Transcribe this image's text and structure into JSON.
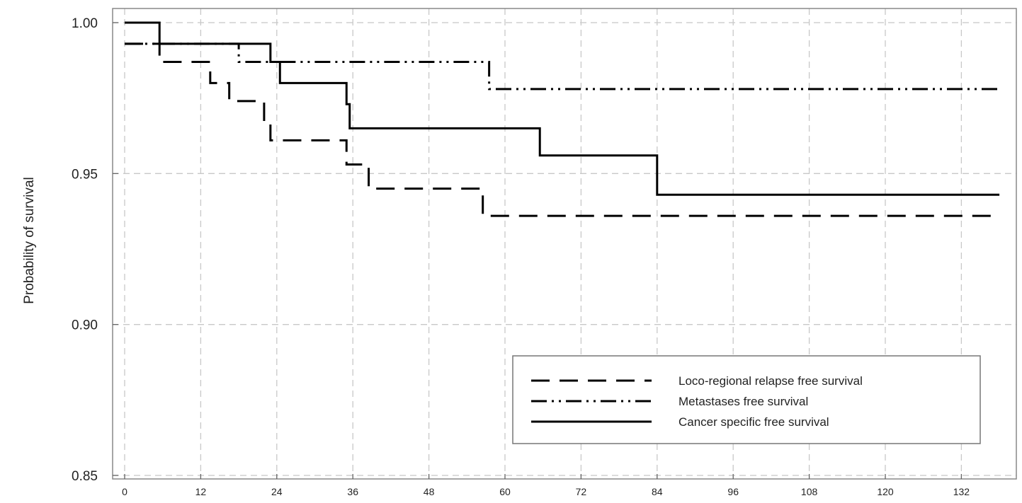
{
  "chart_data": {
    "type": "line",
    "step": true,
    "title": "",
    "xlabel": "",
    "ylabel": "Probability of survival",
    "xlim": [
      0,
      138
    ],
    "ylim": [
      0.85,
      1.0
    ],
    "x_ticks": [
      "0",
      "12",
      "24",
      "36",
      "48",
      "60",
      "72",
      "84",
      "96",
      "108",
      "120",
      "132"
    ],
    "y_ticks": [
      "0.85",
      "0.90",
      "0.95",
      "1.00"
    ],
    "grid": true,
    "legend_position": "bottom-right",
    "series": [
      {
        "name": "Loco-regional relapse free survival",
        "line_style": "dashed",
        "color": "#000000",
        "x": [
          0,
          5.5,
          13.5,
          16.5,
          22,
          23,
          35,
          38.5,
          56.5,
          138
        ],
        "y": [
          0.993,
          0.987,
          0.98,
          0.974,
          0.967,
          0.961,
          0.953,
          0.945,
          0.936,
          0.936
        ]
      },
      {
        "name": "Metastases free survival",
        "line_style": "dash-dot-dot",
        "color": "#000000",
        "x": [
          0,
          5.5,
          18,
          57.5,
          138
        ],
        "y": [
          0.993,
          0.993,
          0.987,
          0.978,
          0.978
        ]
      },
      {
        "name": "Cancer specific free survival",
        "line_style": "solid",
        "color": "#000000",
        "x": [
          0,
          5.5,
          23,
          24.5,
          35,
          35.5,
          65.5,
          84,
          138
        ],
        "y": [
          1.0,
          0.993,
          0.987,
          0.98,
          0.973,
          0.965,
          0.956,
          0.943,
          0.943
        ]
      }
    ]
  }
}
